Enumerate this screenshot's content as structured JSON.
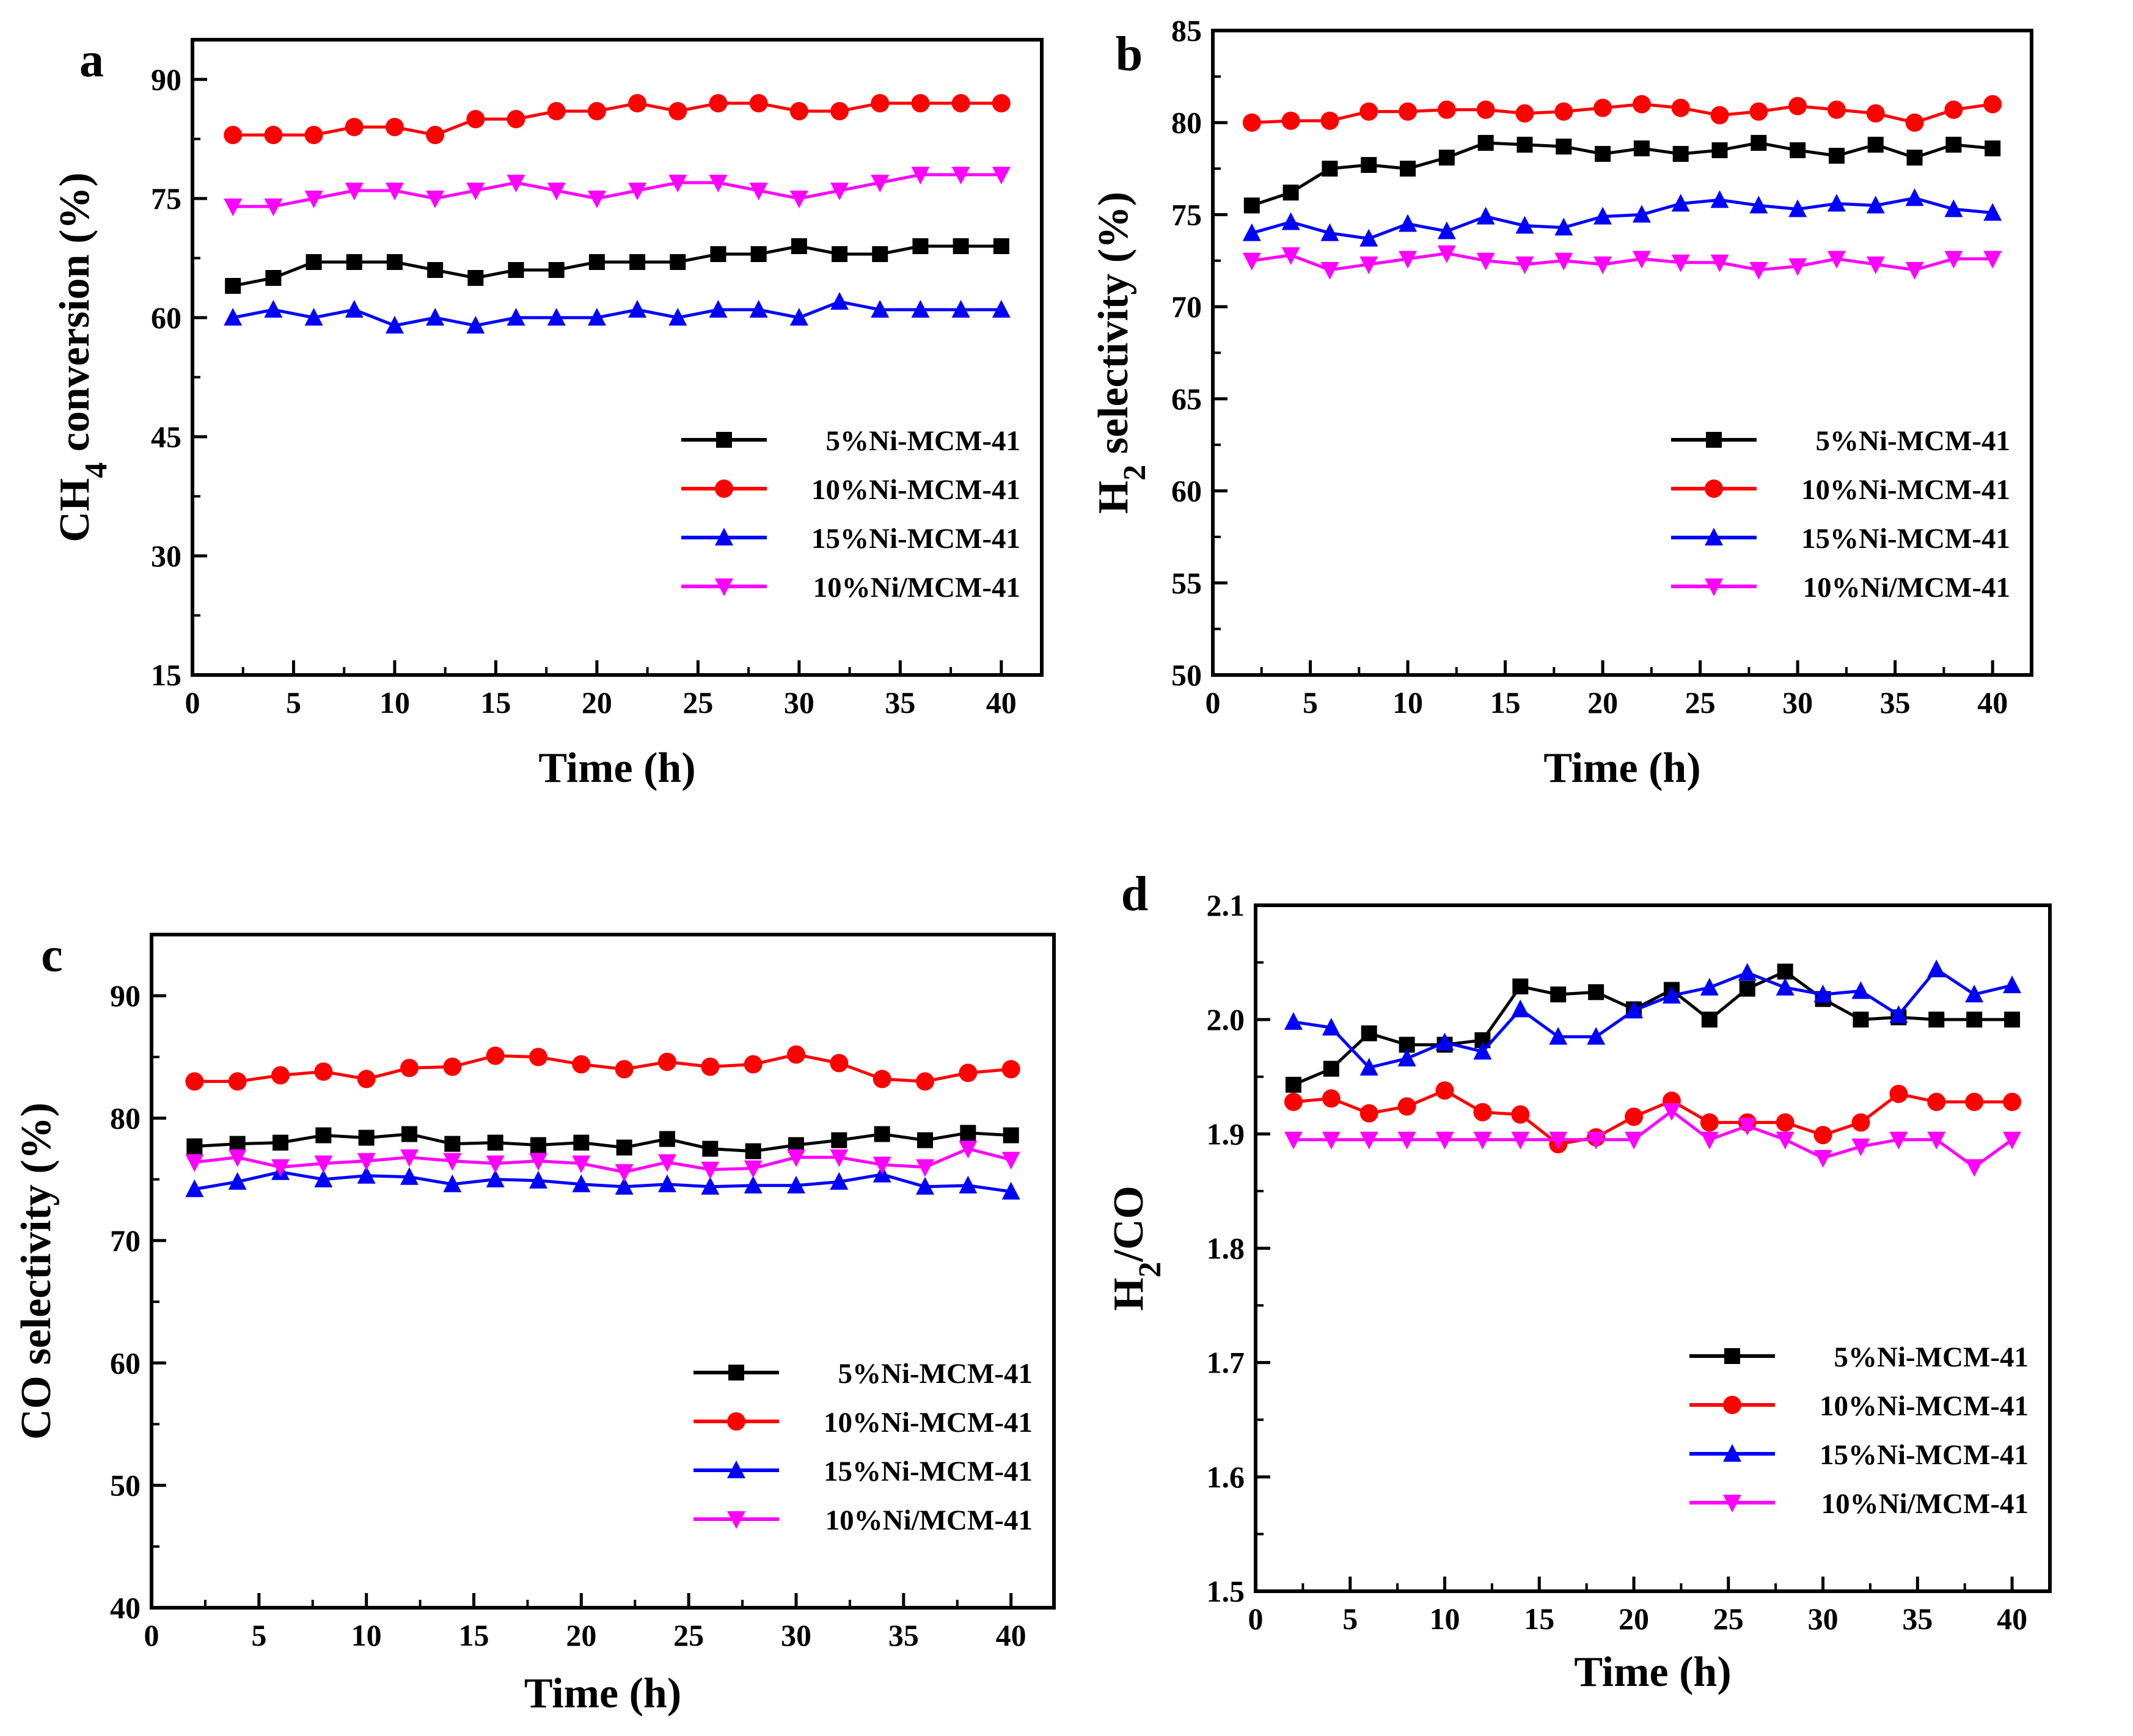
{
  "figure": {
    "colors": {
      "5%Ni-MCM-41": "#000000",
      "10%Ni-MCM-41": "#ff0000",
      "15%Ni-MCM-41": "#0000ff",
      "10%Ni/MCM-41": "#ff00ff"
    },
    "markers": {
      "5%Ni-MCM-41": "square",
      "10%Ni-MCM-41": "circle",
      "15%Ni-MCM-41": "triangle-up",
      "10%Ni/MCM-41": "triangle-down"
    }
  },
  "chart_data": [
    {
      "id": "a",
      "panel_label": "a",
      "type": "line",
      "xlabel": "Time (h)",
      "ylabel": "CH",
      "ylabel_sub": "4",
      "ylabel_tail": " conversion (%)",
      "xlim": [
        0,
        42
      ],
      "ylim": [
        15,
        95
      ],
      "xticks": [
        0,
        5,
        10,
        15,
        20,
        25,
        30,
        35,
        40
      ],
      "yticks": [
        15,
        30,
        45,
        60,
        75,
        90
      ],
      "legend_position": "lower-right",
      "x": [
        2,
        4,
        6,
        8,
        10,
        12,
        14,
        16,
        18,
        20,
        22,
        24,
        26,
        28,
        30,
        32,
        34,
        36,
        38,
        40
      ],
      "series": [
        {
          "name": "5%Ni-MCM-41",
          "values": [
            64,
            65,
            67,
            67,
            67,
            66,
            65,
            66,
            66,
            67,
            67,
            67,
            68,
            68,
            69,
            68,
            68,
            69,
            69,
            69
          ]
        },
        {
          "name": "10%Ni-MCM-41",
          "values": [
            83,
            83,
            83,
            84,
            84,
            83,
            85,
            85,
            86,
            86,
            87,
            86,
            87,
            87,
            86,
            86,
            87,
            87,
            87,
            87
          ]
        },
        {
          "name": "15%Ni-MCM-41",
          "values": [
            60,
            61,
            60,
            61,
            59,
            60,
            59,
            60,
            60,
            60,
            61,
            60,
            61,
            61,
            60,
            62,
            61,
            61,
            61,
            61
          ]
        },
        {
          "name": "10%Ni/MCM-41",
          "values": [
            74,
            74,
            75,
            76,
            76,
            75,
            76,
            77,
            76,
            75,
            76,
            77,
            77,
            76,
            75,
            76,
            77,
            78,
            78,
            78
          ]
        }
      ]
    },
    {
      "id": "b",
      "panel_label": "b",
      "type": "line",
      "xlabel": "Time (h)",
      "ylabel": "H",
      "ylabel_sub": "2",
      "ylabel_tail": " selectivity (%)",
      "xlim": [
        0,
        42
      ],
      "ylim": [
        50,
        85
      ],
      "xticks": [
        0,
        5,
        10,
        15,
        20,
        25,
        30,
        35,
        40
      ],
      "yticks": [
        50,
        55,
        60,
        65,
        70,
        75,
        80,
        85
      ],
      "legend_position": "lower-right",
      "x": [
        2,
        4,
        6,
        8,
        10,
        12,
        14,
        16,
        18,
        20,
        22,
        24,
        26,
        28,
        30,
        32,
        34,
        36,
        38,
        40
      ],
      "series": [
        {
          "name": "5%Ni-MCM-41",
          "values": [
            75.5,
            76.2,
            77.5,
            77.7,
            77.5,
            78.1,
            78.9,
            78.8,
            78.7,
            78.3,
            78.6,
            78.3,
            78.5,
            78.9,
            78.5,
            78.2,
            78.8,
            78.1,
            78.8,
            78.6
          ]
        },
        {
          "name": "10%Ni-MCM-41",
          "values": [
            80.0,
            80.1,
            80.1,
            80.6,
            80.6,
            80.7,
            80.7,
            80.5,
            80.6,
            80.8,
            81.0,
            80.8,
            80.4,
            80.6,
            80.9,
            80.7,
            80.5,
            80.0,
            80.7,
            81.0
          ]
        },
        {
          "name": "15%Ni-MCM-41",
          "values": [
            74.0,
            74.6,
            74.0,
            73.7,
            74.5,
            74.1,
            74.9,
            74.4,
            74.3,
            74.9,
            75.0,
            75.6,
            75.8,
            75.5,
            75.3,
            75.6,
            75.5,
            75.9,
            75.3,
            75.1
          ]
        },
        {
          "name": "10%Ni/MCM-41",
          "values": [
            72.5,
            72.8,
            72.0,
            72.3,
            72.6,
            72.9,
            72.5,
            72.3,
            72.5,
            72.3,
            72.6,
            72.4,
            72.4,
            72.0,
            72.2,
            72.6,
            72.3,
            72.0,
            72.6,
            72.6
          ]
        }
      ]
    },
    {
      "id": "c",
      "panel_label": "c",
      "type": "line",
      "xlabel": "Time (h)",
      "ylabel": "CO selectivity (%)",
      "ylabel_sub": "",
      "ylabel_tail": "",
      "xlim": [
        0,
        42
      ],
      "ylim": [
        40,
        95
      ],
      "xticks": [
        0,
        5,
        10,
        15,
        20,
        25,
        30,
        35,
        40
      ],
      "yticks": [
        40,
        50,
        60,
        70,
        80,
        90
      ],
      "legend_position": "lower-right",
      "x": [
        2,
        4,
        6,
        8,
        10,
        12,
        14,
        16,
        18,
        20,
        22,
        24,
        26,
        28,
        30,
        32,
        34,
        36,
        38,
        40
      ],
      "series": [
        {
          "name": "5%Ni-MCM-41",
          "values": [
            77.7,
            77.9,
            78.0,
            78.6,
            78.4,
            78.7,
            77.9,
            78.0,
            77.8,
            78.0,
            77.6,
            78.3,
            77.5,
            77.3,
            77.8,
            78.2,
            78.7,
            78.2,
            78.8,
            78.6
          ]
        },
        {
          "name": "10%Ni-MCM-41",
          "values": [
            83.0,
            83.0,
            83.5,
            83.8,
            83.2,
            84.1,
            84.2,
            85.1,
            85.0,
            84.4,
            84.0,
            84.6,
            84.2,
            84.4,
            85.2,
            84.5,
            83.2,
            83.0,
            83.7,
            84.0
          ]
        },
        {
          "name": "15%Ni-MCM-41",
          "values": [
            74.2,
            74.8,
            75.6,
            75.0,
            75.3,
            75.2,
            74.6,
            75.0,
            74.9,
            74.6,
            74.4,
            74.6,
            74.4,
            74.5,
            74.5,
            74.8,
            75.4,
            74.4,
            74.5,
            74.0
          ]
        },
        {
          "name": "10%Ni/MCM-41",
          "values": [
            76.4,
            76.8,
            76.0,
            76.3,
            76.5,
            76.8,
            76.5,
            76.3,
            76.5,
            76.3,
            75.6,
            76.4,
            75.8,
            75.9,
            76.8,
            76.8,
            76.2,
            76.0,
            77.5,
            76.6
          ]
        }
      ]
    },
    {
      "id": "d",
      "panel_label": "d",
      "type": "line",
      "xlabel": "Time (h)",
      "ylabel": "H",
      "ylabel_sub": "2",
      "ylabel_tail": "/CO",
      "xlim": [
        0,
        42
      ],
      "ylim": [
        1.5,
        2.1
      ],
      "xticks": [
        0,
        5,
        10,
        15,
        20,
        25,
        30,
        35,
        40
      ],
      "yticks": [
        1.5,
        1.6,
        1.7,
        1.8,
        1.9,
        2.0,
        2.1
      ],
      "legend_position": "lower-right",
      "x": [
        2,
        4,
        6,
        8,
        10,
        12,
        14,
        16,
        18,
        20,
        22,
        24,
        26,
        28,
        30,
        32,
        34,
        36,
        38,
        40
      ],
      "series": [
        {
          "name": "5%Ni-MCM-41",
          "values": [
            1.943,
            1.957,
            1.988,
            1.978,
            1.978,
            1.982,
            2.029,
            2.022,
            2.024,
            2.009,
            2.026,
            2.0,
            2.027,
            2.042,
            2.018,
            2.0,
            2.002,
            2.0,
            2.0,
            2.0
          ]
        },
        {
          "name": "10%Ni-MCM-41",
          "values": [
            1.928,
            1.931,
            1.918,
            1.924,
            1.938,
            1.919,
            1.917,
            1.891,
            1.897,
            1.915,
            1.929,
            1.91,
            1.91,
            1.91,
            1.899,
            1.91,
            1.935,
            1.928,
            1.928,
            1.928
          ]
        },
        {
          "name": "15%Ni-MCM-41",
          "values": [
            1.998,
            1.993,
            1.958,
            1.966,
            1.98,
            1.972,
            2.009,
            1.985,
            1.985,
            2.008,
            2.021,
            2.028,
            2.041,
            2.028,
            2.022,
            2.025,
            2.004,
            2.044,
            2.022,
            2.03
          ]
        },
        {
          "name": "10%Ni/MCM-41",
          "values": [
            1.895,
            1.895,
            1.895,
            1.895,
            1.895,
            1.895,
            1.895,
            1.895,
            1.895,
            1.895,
            1.92,
            1.895,
            1.907,
            1.895,
            1.879,
            1.889,
            1.895,
            1.895,
            1.871,
            1.895
          ]
        }
      ]
    }
  ]
}
